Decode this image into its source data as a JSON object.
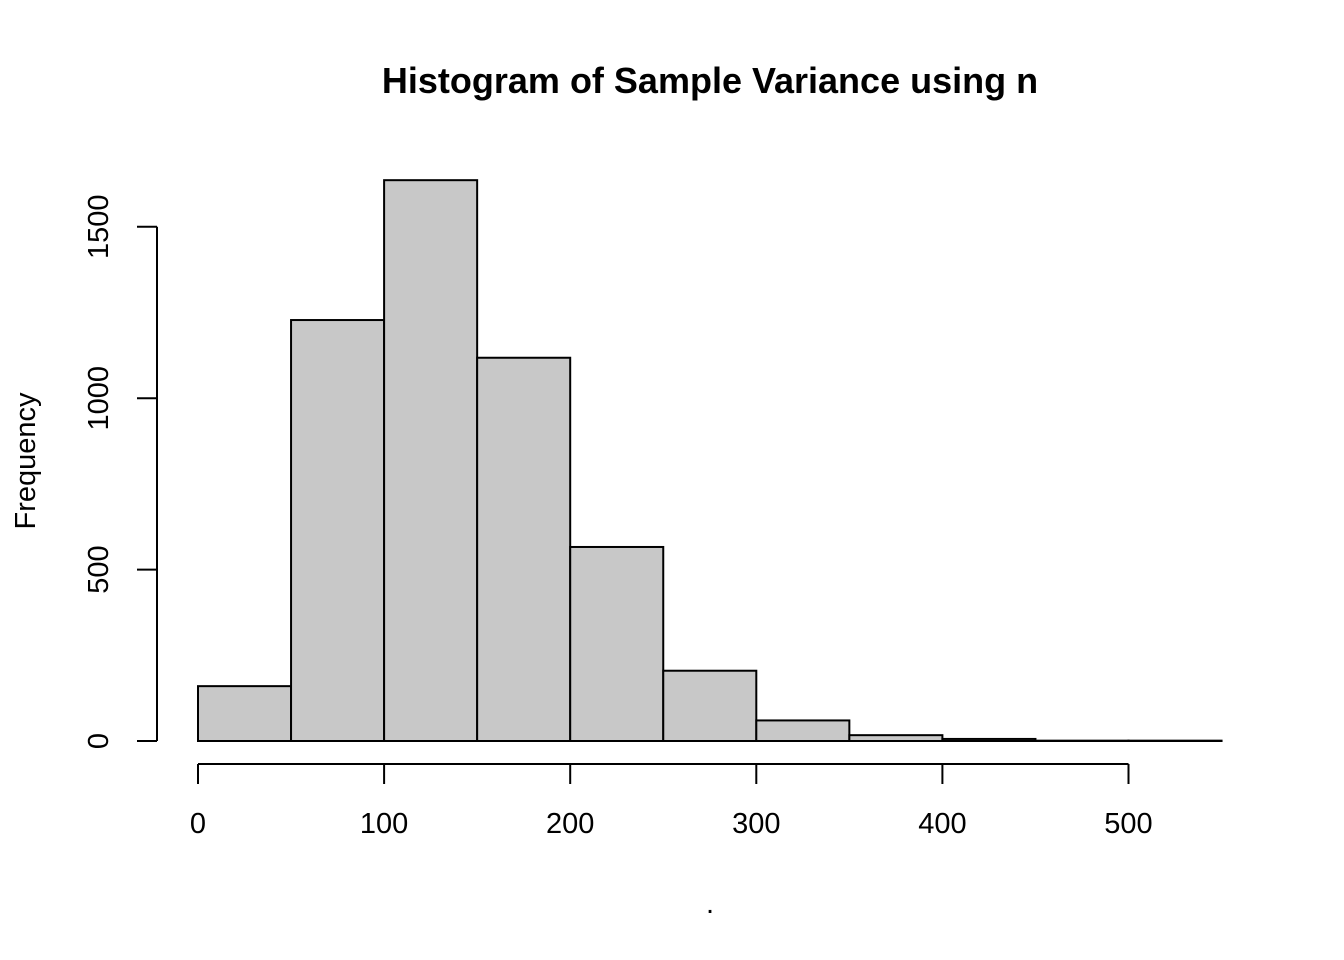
{
  "chart_data": {
    "type": "bar",
    "subtype": "histogram",
    "title": "Histogram of Sample Variance using n",
    "xlabel": ".",
    "ylabel": "Frequency",
    "bin_edges": [
      0,
      50,
      100,
      150,
      200,
      250,
      300,
      350,
      400,
      450,
      500,
      550
    ],
    "values": [
      160,
      1228,
      1636,
      1118,
      566,
      205,
      60,
      17,
      6,
      1,
      1
    ],
    "xlim": [
      0,
      550
    ],
    "ylim": [
      0,
      1650
    ],
    "x_ticks": [
      0,
      100,
      200,
      300,
      400,
      500
    ],
    "x_tick_labels": [
      "0",
      "100",
      "200",
      "300",
      "400",
      "500"
    ],
    "y_ticks": [
      0,
      500,
      1000,
      1500
    ],
    "y_tick_labels": [
      "0",
      "500",
      "1000",
      "1500"
    ],
    "bar_color": "#c8c8c8",
    "edge_color": "#000000",
    "grid": false,
    "legend": "none"
  }
}
